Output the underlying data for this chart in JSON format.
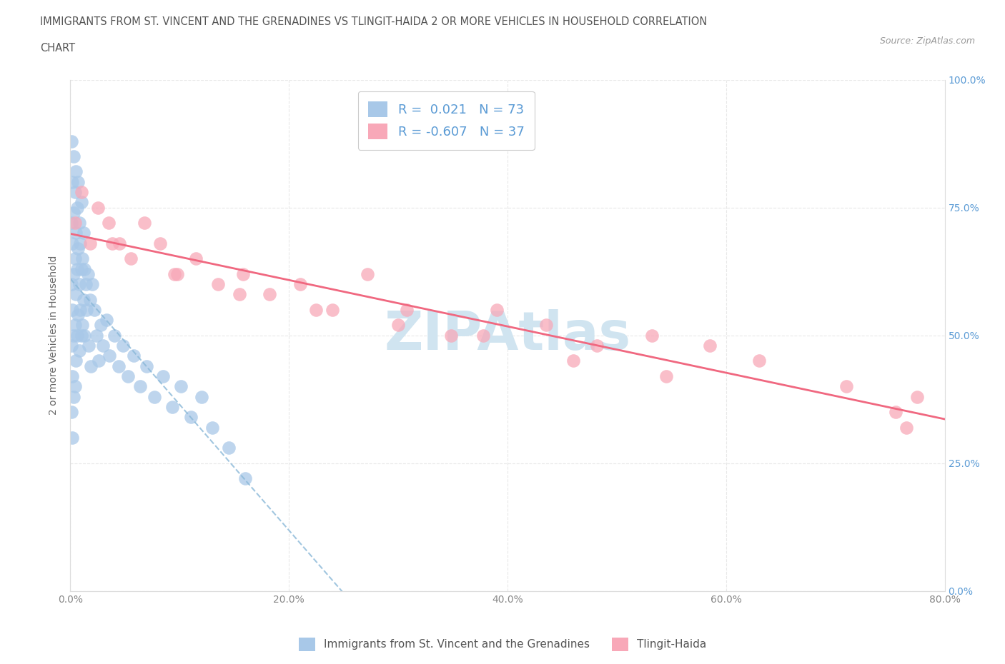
{
  "title_line1": "IMMIGRANTS FROM ST. VINCENT AND THE GRENADINES VS TLINGIT-HAIDA 2 OR MORE VEHICLES IN HOUSEHOLD CORRELATION",
  "title_line2": "CHART",
  "source_text": "Source: ZipAtlas.com",
  "r_blue": 0.021,
  "n_blue": 73,
  "r_pink": -0.607,
  "n_pink": 37,
  "ylabel": "2 or more Vehicles in Household",
  "legend_label_blue": "Immigrants from St. Vincent and the Grenadines",
  "legend_label_pink": "Tlingit-Haida",
  "color_blue": "#a8c8e8",
  "color_pink": "#f8a8b8",
  "trendline_blue_color": "#8ab8d8",
  "trendline_pink_color": "#f06880",
  "watermark_text": "ZIPAtlas",
  "watermark_color": "#d0e4f0",
  "xlim": [
    0.0,
    0.8
  ],
  "ylim": [
    0.0,
    1.0
  ],
  "xticks": [
    0.0,
    0.2,
    0.4,
    0.6,
    0.8
  ],
  "xticklabels": [
    "0.0%",
    "20.0%",
    "40.0%",
    "60.0%",
    "80.0%"
  ],
  "yticks": [
    0.0,
    0.25,
    0.5,
    0.75,
    1.0
  ],
  "yticklabels": [
    "0.0%",
    "25.0%",
    "50.0%",
    "75.0%",
    "100.0%"
  ],
  "blue_x": [
    0.001,
    0.001,
    0.001,
    0.001,
    0.001,
    0.002,
    0.002,
    0.002,
    0.002,
    0.002,
    0.003,
    0.003,
    0.003,
    0.003,
    0.003,
    0.004,
    0.004,
    0.004,
    0.004,
    0.005,
    0.005,
    0.005,
    0.005,
    0.006,
    0.006,
    0.006,
    0.007,
    0.007,
    0.007,
    0.008,
    0.008,
    0.008,
    0.009,
    0.009,
    0.01,
    0.01,
    0.01,
    0.011,
    0.011,
    0.012,
    0.012,
    0.013,
    0.013,
    0.014,
    0.015,
    0.016,
    0.017,
    0.018,
    0.019,
    0.02,
    0.022,
    0.024,
    0.026,
    0.028,
    0.03,
    0.033,
    0.036,
    0.04,
    0.044,
    0.048,
    0.053,
    0.058,
    0.064,
    0.07,
    0.077,
    0.085,
    0.093,
    0.101,
    0.11,
    0.12,
    0.13,
    0.145,
    0.16
  ],
  "blue_y": [
    0.88,
    0.72,
    0.6,
    0.48,
    0.35,
    0.8,
    0.68,
    0.55,
    0.42,
    0.3,
    0.85,
    0.74,
    0.62,
    0.5,
    0.38,
    0.78,
    0.65,
    0.52,
    0.4,
    0.82,
    0.7,
    0.58,
    0.45,
    0.75,
    0.63,
    0.5,
    0.8,
    0.67,
    0.54,
    0.72,
    0.6,
    0.47,
    0.68,
    0.55,
    0.76,
    0.63,
    0.5,
    0.65,
    0.52,
    0.7,
    0.57,
    0.63,
    0.5,
    0.6,
    0.55,
    0.62,
    0.48,
    0.57,
    0.44,
    0.6,
    0.55,
    0.5,
    0.45,
    0.52,
    0.48,
    0.53,
    0.46,
    0.5,
    0.44,
    0.48,
    0.42,
    0.46,
    0.4,
    0.44,
    0.38,
    0.42,
    0.36,
    0.4,
    0.34,
    0.38,
    0.32,
    0.28,
    0.22
  ],
  "pink_x": [
    0.004,
    0.01,
    0.018,
    0.025,
    0.035,
    0.045,
    0.055,
    0.068,
    0.082,
    0.098,
    0.115,
    0.135,
    0.158,
    0.182,
    0.21,
    0.24,
    0.272,
    0.308,
    0.348,
    0.39,
    0.435,
    0.482,
    0.532,
    0.585,
    0.038,
    0.095,
    0.155,
    0.225,
    0.3,
    0.378,
    0.46,
    0.545,
    0.63,
    0.71,
    0.755,
    0.765,
    0.775
  ],
  "pink_y": [
    0.72,
    0.78,
    0.68,
    0.75,
    0.72,
    0.68,
    0.65,
    0.72,
    0.68,
    0.62,
    0.65,
    0.6,
    0.62,
    0.58,
    0.6,
    0.55,
    0.62,
    0.55,
    0.5,
    0.55,
    0.52,
    0.48,
    0.5,
    0.48,
    0.68,
    0.62,
    0.58,
    0.55,
    0.52,
    0.5,
    0.45,
    0.42,
    0.45,
    0.4,
    0.35,
    0.32,
    0.38
  ]
}
